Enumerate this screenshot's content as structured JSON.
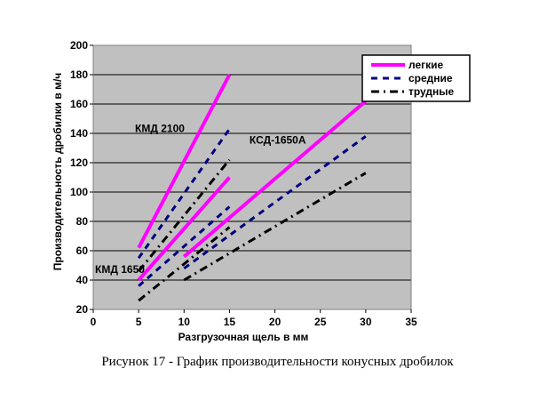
{
  "caption": "Рисунок 17 - График   производительности конусных дробилок",
  "chart_data": {
    "type": "line",
    "xlabel": "Разгрузочная щель  в мм",
    "ylabel": "Производительность дробилки в м/ч",
    "xlim": [
      0,
      35
    ],
    "ylim": [
      20,
      200
    ],
    "x_ticks": [
      "0",
      "5",
      "10",
      "15",
      "20",
      "25",
      "30",
      "35"
    ],
    "y_ticks": [
      "20",
      "40",
      "60",
      "80",
      "100",
      "120",
      "140",
      "160",
      "180",
      "200"
    ],
    "grid": true,
    "legend_position": "top-right",
    "legend": [
      {
        "label": "легкие",
        "color": "#ff00ff",
        "dash": "solid"
      },
      {
        "label": "средние",
        "color": "#000080",
        "dash": "dash"
      },
      {
        "label": "трудные",
        "color": "#000000",
        "dash": "dashdot"
      }
    ],
    "annotations": [
      {
        "text": "КМД 2100",
        "x": 4.6,
        "y": 141
      },
      {
        "text": "КСД-1650А",
        "x": 17.2,
        "y": 133
      },
      {
        "text": "КМД 1650",
        "x": 0.2,
        "y": 45
      }
    ],
    "series": [
      {
        "group": "КМД 2100",
        "type": "легкие",
        "color": "#ff00ff",
        "dash": "solid",
        "x": [
          5,
          15
        ],
        "y": [
          62,
          180
        ]
      },
      {
        "group": "КМД 2100",
        "type": "средние",
        "color": "#000080",
        "dash": "dash",
        "x": [
          5,
          15
        ],
        "y": [
          55,
          143
        ]
      },
      {
        "group": "КМД 2100",
        "type": "трудные",
        "color": "#000000",
        "dash": "dashdot",
        "x": [
          5,
          15
        ],
        "y": [
          46,
          122
        ]
      },
      {
        "group": "КМД 1650",
        "type": "легкие",
        "color": "#ff00ff",
        "dash": "solid",
        "x": [
          5,
          15
        ],
        "y": [
          40,
          110
        ]
      },
      {
        "group": "КМД 1650",
        "type": "средние",
        "color": "#000080",
        "dash": "dash",
        "x": [
          5,
          15
        ],
        "y": [
          36,
          90
        ]
      },
      {
        "group": "КМД 1650",
        "type": "трудные",
        "color": "#000000",
        "dash": "dashdot",
        "x": [
          5,
          15
        ],
        "y": [
          26,
          76
        ]
      },
      {
        "group": "КСД-1650А",
        "type": "легкие",
        "color": "#ff00ff",
        "dash": "solid",
        "x": [
          10,
          30
        ],
        "y": [
          56,
          162
        ]
      },
      {
        "group": "КСД-1650А",
        "type": "средние",
        "color": "#000080",
        "dash": "dash",
        "x": [
          10,
          30
        ],
        "y": [
          48,
          138
        ]
      },
      {
        "group": "КСД-1650А",
        "type": "трудные",
        "color": "#000000",
        "dash": "dashdot",
        "x": [
          10,
          30
        ],
        "y": [
          40,
          113
        ]
      }
    ]
  }
}
